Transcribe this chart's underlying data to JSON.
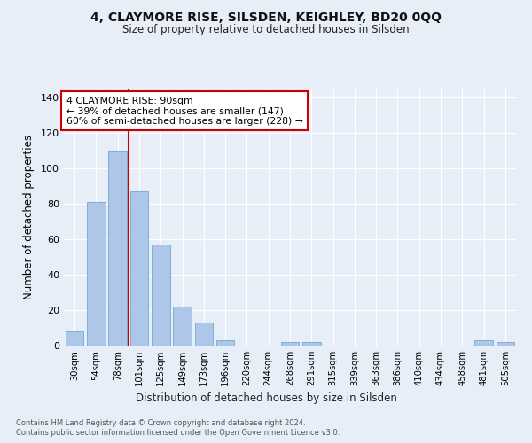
{
  "title1": "4, CLAYMORE RISE, SILSDEN, KEIGHLEY, BD20 0QQ",
  "title2": "Size of property relative to detached houses in Silsden",
  "xlabel": "Distribution of detached houses by size in Silsden",
  "ylabel": "Number of detached properties",
  "footer1": "Contains HM Land Registry data © Crown copyright and database right 2024.",
  "footer2": "Contains public sector information licensed under the Open Government Licence v3.0.",
  "bar_labels": [
    "30sqm",
    "54sqm",
    "78sqm",
    "101sqm",
    "125sqm",
    "149sqm",
    "173sqm",
    "196sqm",
    "220sqm",
    "244sqm",
    "268sqm",
    "291sqm",
    "315sqm",
    "339sqm",
    "363sqm",
    "386sqm",
    "410sqm",
    "434sqm",
    "458sqm",
    "481sqm",
    "505sqm"
  ],
  "bar_values": [
    8,
    81,
    110,
    87,
    57,
    22,
    13,
    3,
    0,
    0,
    2,
    2,
    0,
    0,
    0,
    0,
    0,
    0,
    0,
    3,
    2
  ],
  "bar_color": "#aec6e8",
  "bar_edge_color": "#7aafd4",
  "vline_x_index": 2.5,
  "vline_color": "#cc0000",
  "annotation_text": "4 CLAYMORE RISE: 90sqm\n← 39% of detached houses are smaller (147)\n60% of semi-detached houses are larger (228) →",
  "annotation_box_color": "#ffffff",
  "annotation_box_edgecolor": "#cc0000",
  "ylim": [
    0,
    145
  ],
  "yticks": [
    0,
    20,
    40,
    60,
    80,
    100,
    120,
    140
  ],
  "bg_color": "#e8eef8",
  "grid_color": "#ffffff"
}
